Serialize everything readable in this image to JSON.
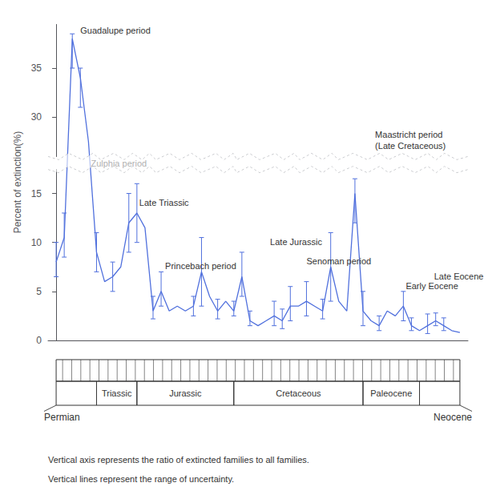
{
  "chart_data": {
    "type": "line",
    "ylabel": "Percent of extinction(%)",
    "x": [
      0,
      1,
      2,
      3,
      4,
      5,
      6,
      7,
      8,
      9,
      10,
      11,
      12,
      13,
      14,
      15,
      16,
      17,
      18,
      19,
      20,
      21,
      22,
      23,
      24,
      25,
      26,
      27,
      28,
      29,
      30,
      31,
      32,
      33,
      34,
      35,
      36,
      37,
      38,
      39,
      40,
      41,
      42,
      43,
      44,
      45,
      46,
      47,
      48,
      49,
      50
    ],
    "values": [
      8.0,
      10.5,
      38.0,
      34.0,
      27.5,
      9.0,
      6.0,
      6.5,
      7.5,
      12.0,
      13.0,
      11.5,
      3.0,
      5.0,
      3.0,
      3.5,
      3.0,
      3.5,
      7.0,
      4.5,
      3.0,
      4.0,
      3.0,
      6.5,
      2.0,
      1.5,
      2.0,
      2.5,
      2.0,
      3.5,
      3.5,
      4.0,
      3.5,
      3.0,
      7.5,
      4.0,
      3.0,
      15.0,
      3.0,
      2.0,
      1.5,
      3.0,
      2.5,
      3.5,
      1.5,
      1.0,
      1.5,
      2.0,
      1.5,
      1.0,
      0.8
    ],
    "yerr_low": [
      1.5,
      2.0,
      3.0,
      3.0,
      null,
      2.0,
      null,
      1.5,
      null,
      3.0,
      3.0,
      null,
      0.8,
      1.5,
      null,
      null,
      null,
      1.0,
      3.5,
      null,
      0.8,
      null,
      0.5,
      2.0,
      0.5,
      null,
      null,
      1.0,
      0.8,
      1.5,
      null,
      1.5,
      null,
      0.8,
      3.5,
      null,
      null,
      3.0,
      1.5,
      null,
      0.5,
      null,
      null,
      1.5,
      0.5,
      null,
      0.8,
      0.5,
      0.5,
      null,
      null
    ],
    "yerr_high": [
      2.0,
      2.5,
      0.5,
      1.0,
      null,
      2.0,
      null,
      1.5,
      null,
      3.0,
      3.0,
      null,
      1.5,
      2.0,
      null,
      null,
      null,
      1.0,
      3.5,
      null,
      1.2,
      null,
      1.0,
      2.5,
      1.0,
      null,
      null,
      1.5,
      1.2,
      2.0,
      null,
      2.0,
      null,
      1.2,
      3.5,
      null,
      null,
      1.5,
      2.0,
      null,
      1.0,
      null,
      null,
      1.5,
      0.8,
      null,
      1.2,
      0.8,
      0.8,
      null,
      null
    ],
    "xlim": [
      -1,
      51
    ],
    "ylim": [
      0,
      39.5
    ],
    "yticks": [
      0,
      5,
      10,
      15,
      30,
      35
    ],
    "y_break": [
      17.5,
      26.0
    ],
    "grid": false,
    "tick_labels": "y",
    "annotations": [
      {
        "text": "Guadalupe period",
        "x": 3.0,
        "y": 38.3
      },
      {
        "text": "Zulphia period",
        "x": 4.3,
        "y": 17.5
      },
      {
        "text": "Late Triassic",
        "x": 10.3,
        "y": 13.5
      },
      {
        "text": "Princebach period",
        "x": 13.5,
        "y": 7.0
      },
      {
        "text": "Late Jurassic",
        "x": 26.5,
        "y": 9.5
      },
      {
        "text": "Senoman period",
        "x": 31.0,
        "y": 7.5
      },
      {
        "text": "Maastricht period\n(Late Cretaceous)",
        "x": 39.5,
        "y": 26.5
      },
      {
        "text": "Early Eocene",
        "x": 43.3,
        "y": 5.0
      },
      {
        "text": "Late Eocene",
        "x": 46.8,
        "y": 6.0
      }
    ],
    "periods": [
      {
        "name": "Triassic",
        "x0": 5,
        "x1": 10
      },
      {
        "name": "Jurassic",
        "x0": 10,
        "x1": 22
      },
      {
        "name": "Cretaceous",
        "x0": 22,
        "x1": 38
      },
      {
        "name": "Paleocene",
        "x0": 38,
        "x1": 45
      }
    ],
    "edge_labels": [
      "Permian",
      "Neocene"
    ],
    "footnotes": [
      "Vertical axis represents the ratio of extincted families to all families.",
      "Vertical lines represent the range of uncertainty."
    ]
  }
}
